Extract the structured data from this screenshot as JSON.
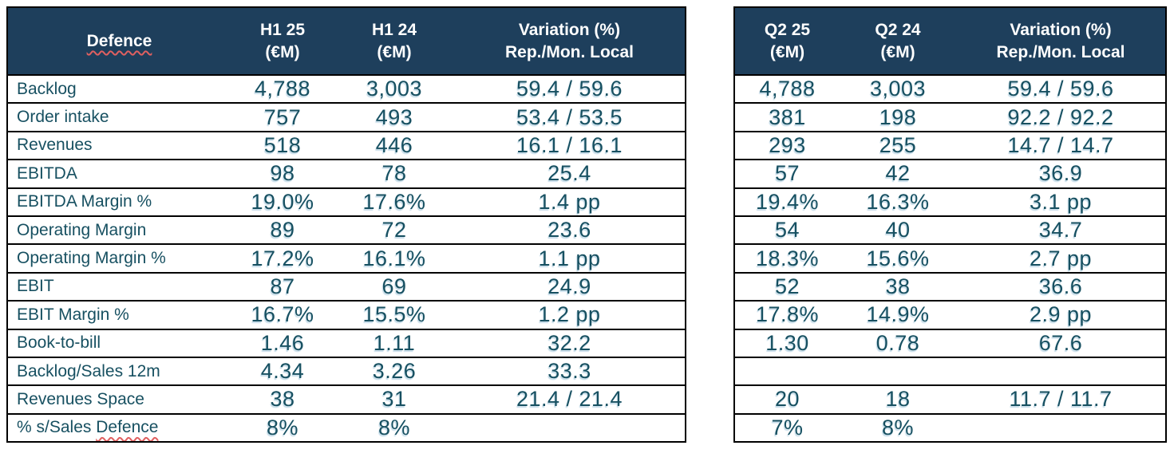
{
  "colors": {
    "header_bg": "#1e3f5c",
    "header_text": "#ffffff",
    "cell_text": "#175061",
    "border": "#000000",
    "spellcheck_squiggle": "#e06060"
  },
  "left_table": {
    "header": {
      "label": "Defence",
      "cols": [
        {
          "line1": "H1 25",
          "line2": "(€M)"
        },
        {
          "line1": "H1 24",
          "line2": "(€M)"
        },
        {
          "line1": "Variation (%)",
          "line2": "Rep./Mon. Local"
        }
      ]
    },
    "rows": [
      {
        "label": "Backlog",
        "values": [
          "4,788",
          "3,003",
          "59.4 / 59.6"
        ]
      },
      {
        "label": "Order intake",
        "values": [
          "757",
          "493",
          "53.4 / 53.5"
        ]
      },
      {
        "label": "Revenues",
        "values": [
          "518",
          "446",
          "16.1 / 16.1"
        ]
      },
      {
        "label": "EBITDA",
        "values": [
          "98",
          "78",
          "25.4"
        ]
      },
      {
        "label": "EBITDA Margin %",
        "values": [
          "19.0%",
          "17.6%",
          "1.4 pp"
        ]
      },
      {
        "label": "Operating Margin",
        "values": [
          "89",
          "72",
          "23.6"
        ]
      },
      {
        "label": "Operating Margin %",
        "values": [
          "17.2%",
          "16.1%",
          "1.1 pp"
        ]
      },
      {
        "label": "EBIT",
        "values": [
          "87",
          "69",
          "24.9"
        ]
      },
      {
        "label": "EBIT Margin %",
        "values": [
          "16.7%",
          "15.5%",
          "1.2 pp"
        ]
      },
      {
        "label": "Book-to-bill",
        "values": [
          "1.46",
          "1.11",
          "32.2"
        ]
      },
      {
        "label": "Backlog/Sales 12m",
        "values": [
          "4.34",
          "3.26",
          "33.3"
        ]
      },
      {
        "label": "Revenues Space",
        "values": [
          "38",
          "31",
          "21.4 / 21.4"
        ]
      },
      {
        "label": "% s/Sales ",
        "label_squiggle": "Defence",
        "values": [
          "8%",
          "8%",
          ""
        ]
      }
    ]
  },
  "right_table": {
    "header": {
      "cols": [
        {
          "line1": "Q2 25",
          "line2": "(€M)"
        },
        {
          "line1": "Q2 24",
          "line2": "(€M)"
        },
        {
          "line1": "Variation (%)",
          "line2": "Rep./Mon. Local"
        }
      ]
    },
    "rows": [
      {
        "values": [
          "4,788",
          "3,003",
          "59.4 / 59.6"
        ]
      },
      {
        "values": [
          "381",
          "198",
          "92.2 / 92.2"
        ]
      },
      {
        "values": [
          "293",
          "255",
          "14.7 / 14.7"
        ]
      },
      {
        "values": [
          "57",
          "42",
          "36.9"
        ]
      },
      {
        "values": [
          "19.4%",
          "16.3%",
          "3.1 pp"
        ]
      },
      {
        "values": [
          "54",
          "40",
          "34.7"
        ]
      },
      {
        "values": [
          "18.3%",
          "15.6%",
          "2.7 pp"
        ]
      },
      {
        "values": [
          "52",
          "38",
          "36.6"
        ]
      },
      {
        "values": [
          "17.8%",
          "14.9%",
          "2.9 pp"
        ]
      },
      {
        "values": [
          "1.30",
          "0.78",
          "67.6"
        ]
      },
      {
        "values": [
          "",
          "",
          ""
        ]
      },
      {
        "values": [
          "20",
          "18",
          "11.7 / 11.7"
        ]
      },
      {
        "values": [
          "7%",
          "8%",
          ""
        ]
      }
    ]
  }
}
